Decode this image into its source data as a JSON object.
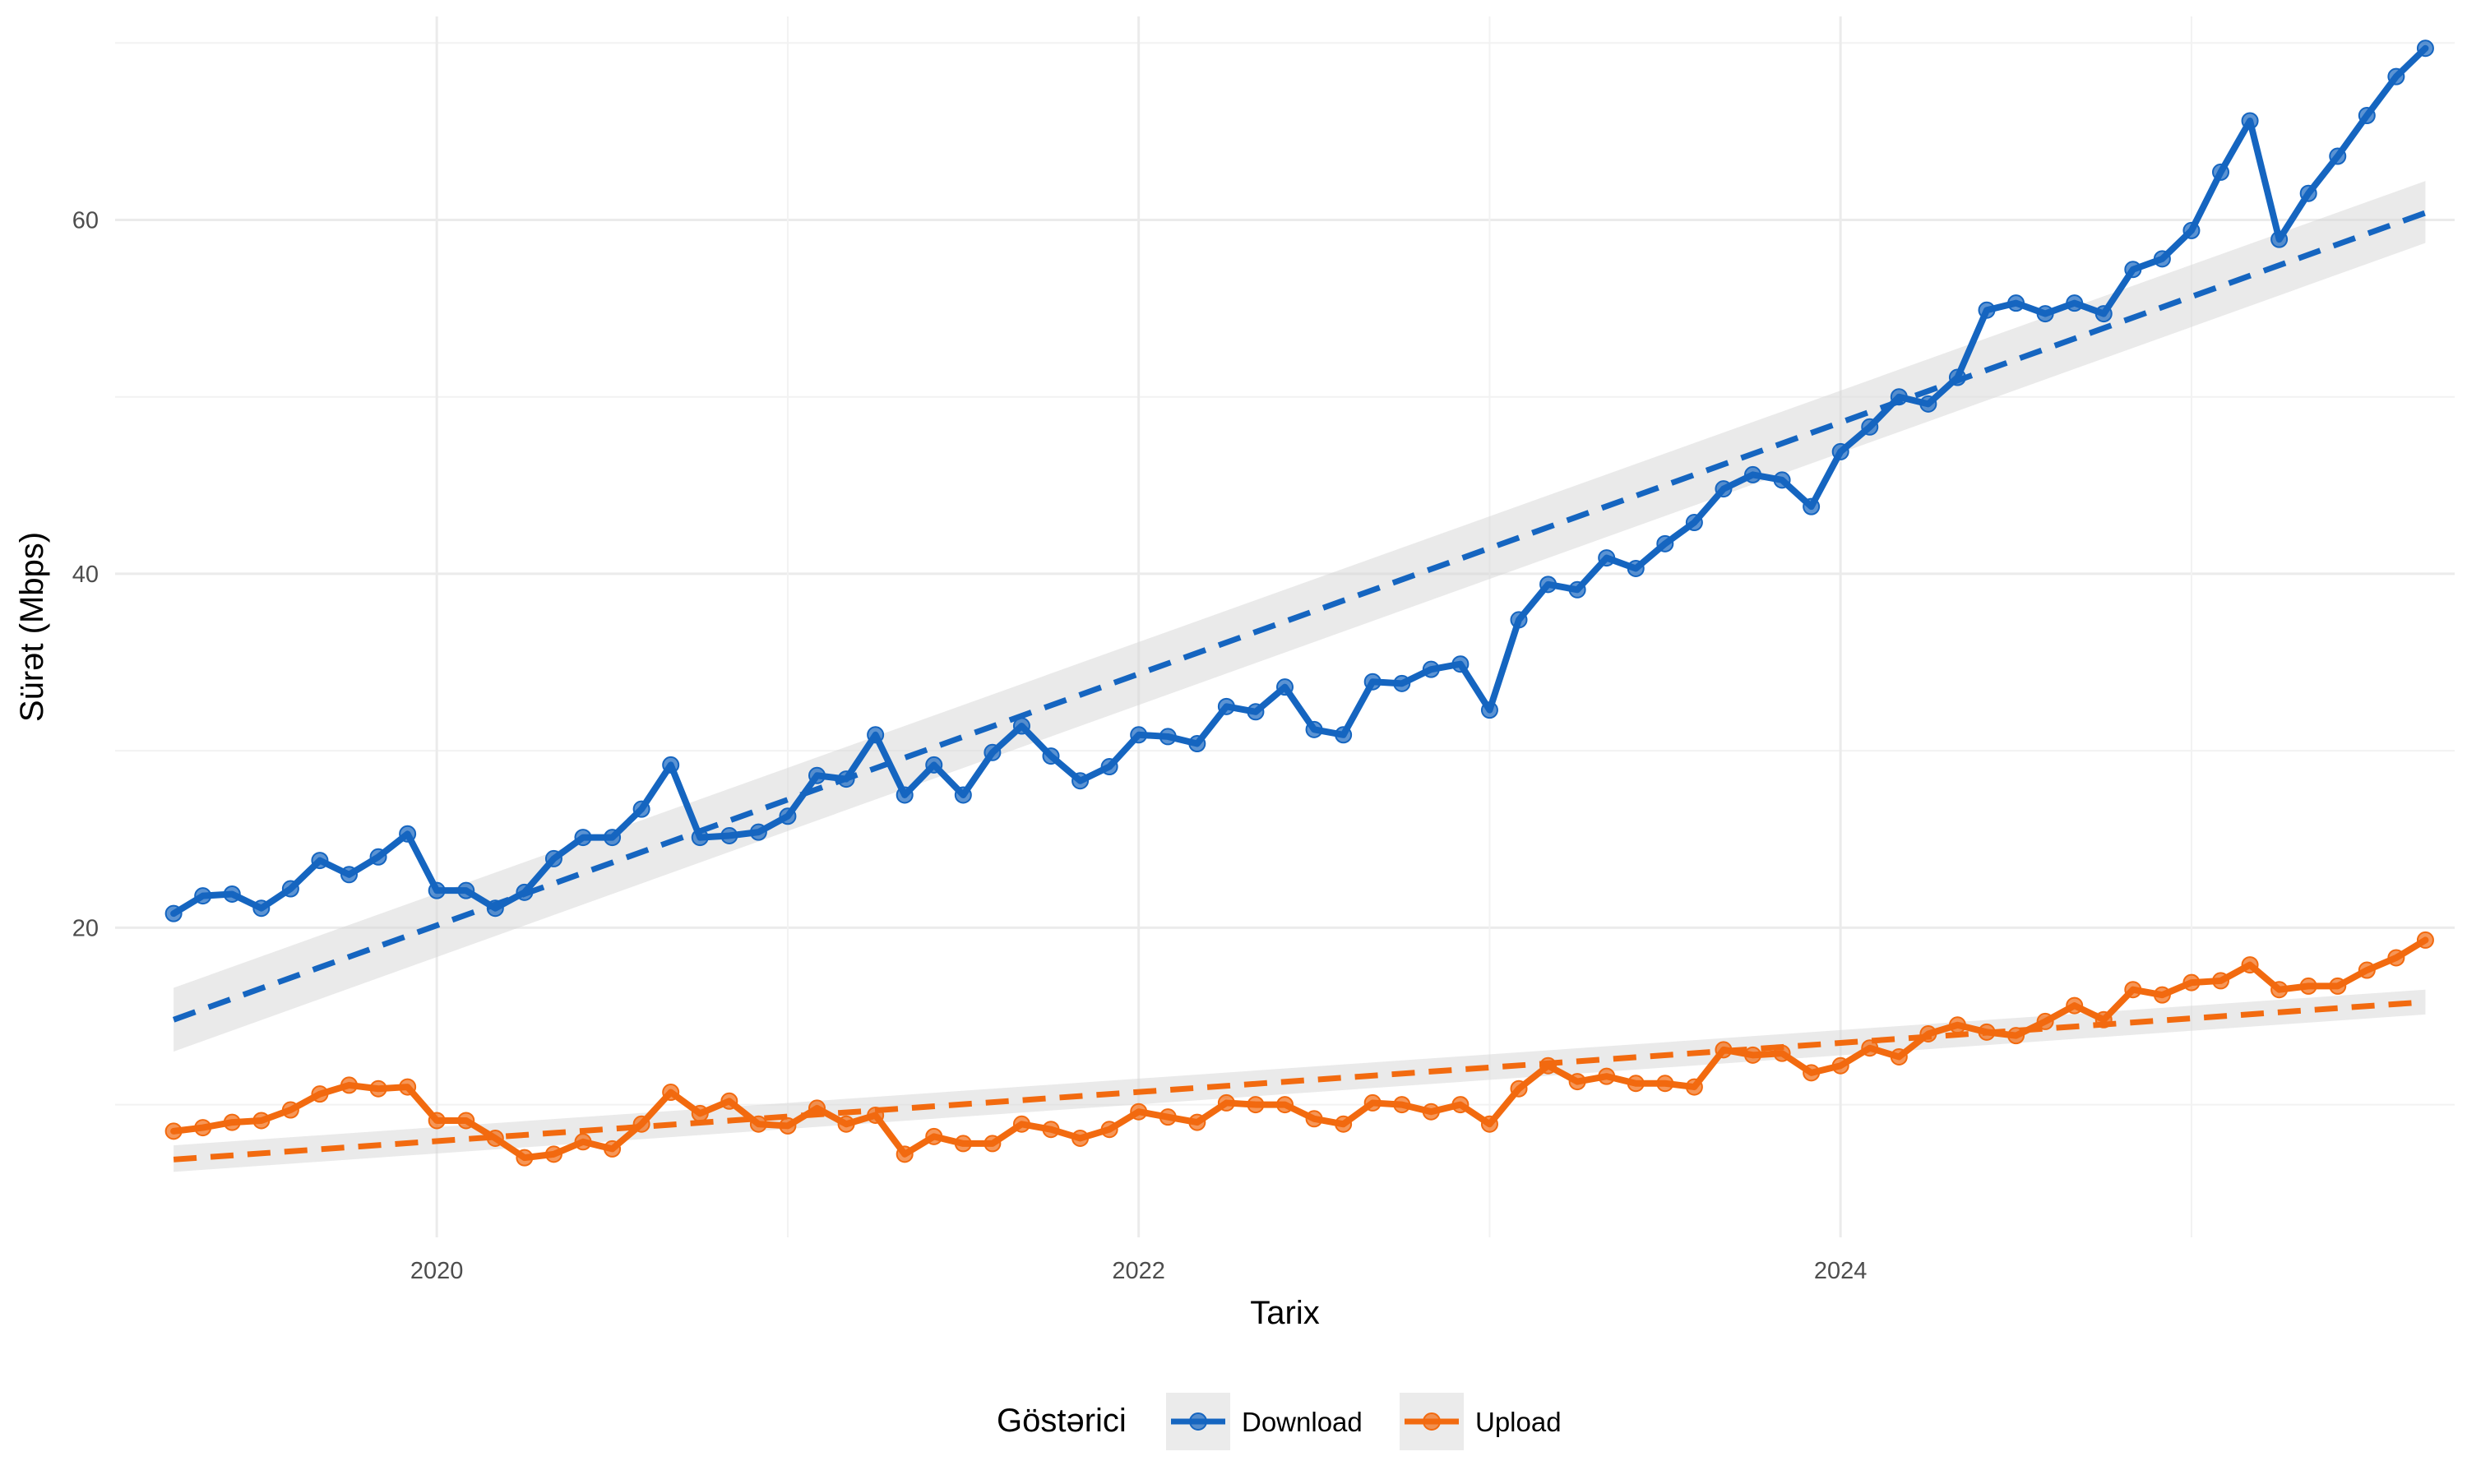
{
  "chart_data": {
    "type": "line",
    "xlabel": "Tarix",
    "ylabel": "Sürət (Mbps)",
    "x_ticks": [
      "2020",
      "2022",
      "2024"
    ],
    "y_ticks": [
      20,
      40,
      60
    ],
    "xlim": [
      "2019-02",
      "2025-10"
    ],
    "ylim": [
      2.5,
      71.5
    ],
    "grid": true,
    "legend": {
      "title": "Göstərici",
      "position": "bottom"
    },
    "x": [
      "2019-04",
      "2019-05",
      "2019-06",
      "2019-07",
      "2019-08",
      "2019-09",
      "2019-10",
      "2019-11",
      "2019-12",
      "2020-01",
      "2020-02",
      "2020-03",
      "2020-04",
      "2020-05",
      "2020-06",
      "2020-07",
      "2020-08",
      "2020-09",
      "2020-10",
      "2020-11",
      "2020-12",
      "2021-01",
      "2021-02",
      "2021-03",
      "2021-04",
      "2021-05",
      "2021-06",
      "2021-07",
      "2021-08",
      "2021-09",
      "2021-10",
      "2021-11",
      "2021-12",
      "2022-01",
      "2022-02",
      "2022-03",
      "2022-04",
      "2022-05",
      "2022-06",
      "2022-07",
      "2022-08",
      "2022-09",
      "2022-10",
      "2022-11",
      "2022-12",
      "2023-01",
      "2023-02",
      "2023-03",
      "2023-04",
      "2023-05",
      "2023-06",
      "2023-07",
      "2023-08",
      "2023-09",
      "2023-10",
      "2023-11",
      "2023-12",
      "2024-01",
      "2024-02",
      "2024-03",
      "2024-04",
      "2024-05",
      "2024-06",
      "2024-07",
      "2024-08",
      "2024-09",
      "2024-10",
      "2024-11",
      "2024-12",
      "2025-01",
      "2025-02",
      "2025-03",
      "2025-04",
      "2025-05",
      "2025-06",
      "2025-07",
      "2025-08",
      "2025-09"
    ],
    "series": [
      {
        "name": "Download",
        "color": "#1565C0",
        "values": [
          20.8,
          21.8,
          21.9,
          21.1,
          22.2,
          23.8,
          23.0,
          24.0,
          25.3,
          22.1,
          22.1,
          21.1,
          22.0,
          23.9,
          25.1,
          25.1,
          26.7,
          29.2,
          25.1,
          25.2,
          25.4,
          26.3,
          28.6,
          28.4,
          30.9,
          27.5,
          29.2,
          27.5,
          29.9,
          31.4,
          29.7,
          28.3,
          29.1,
          30.9,
          30.8,
          30.4,
          32.5,
          32.2,
          33.6,
          31.2,
          30.9,
          33.9,
          33.8,
          34.6,
          34.9,
          32.3,
          37.4,
          39.4,
          39.1,
          40.9,
          40.3,
          41.7,
          42.9,
          44.8,
          45.6,
          45.3,
          43.8,
          46.9,
          48.3,
          50.0,
          49.6,
          51.1,
          54.9,
          55.3,
          54.7,
          55.3,
          54.7,
          57.2,
          57.8,
          59.4,
          62.7,
          65.6,
          58.9,
          61.5,
          63.6,
          65.9,
          68.1,
          69.7
        ],
        "trend": {
          "start": 14.8,
          "end": 60.4,
          "band_start": [
            13.0,
            16.6
          ],
          "band_end": [
            58.7,
            62.2
          ]
        }
      },
      {
        "name": "Upload",
        "color": "#F26A0F",
        "values": [
          8.5,
          8.7,
          9.0,
          9.1,
          9.7,
          10.6,
          11.1,
          10.9,
          11.0,
          9.1,
          9.1,
          8.1,
          7.0,
          7.2,
          7.9,
          7.5,
          8.9,
          10.7,
          9.5,
          10.2,
          8.9,
          8.8,
          9.8,
          8.9,
          9.4,
          7.2,
          8.2,
          7.8,
          7.8,
          8.9,
          8.6,
          8.1,
          8.6,
          9.6,
          9.3,
          9.0,
          10.1,
          10.0,
          10.0,
          9.2,
          8.9,
          10.1,
          10.0,
          9.6,
          10.0,
          8.9,
          10.9,
          12.2,
          11.3,
          11.6,
          11.2,
          11.2,
          11.0,
          13.1,
          12.8,
          12.9,
          11.8,
          12.2,
          13.2,
          12.7,
          14.0,
          14.5,
          14.1,
          13.9,
          14.7,
          15.6,
          14.8,
          16.5,
          16.2,
          16.9,
          17.0,
          17.9,
          16.5,
          16.7,
          16.7,
          17.6,
          18.3,
          19.3
        ],
        "trend": {
          "start": 6.9,
          "end": 15.8,
          "band_start": [
            6.2,
            7.7
          ],
          "band_end": [
            15.1,
            16.5
          ]
        }
      }
    ]
  }
}
